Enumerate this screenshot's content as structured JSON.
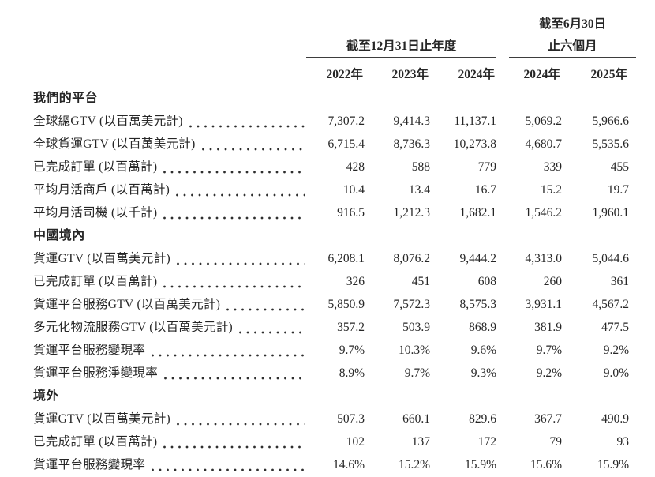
{
  "page": {
    "background": "#ffffff",
    "text_color": "#262626",
    "rule_color": "#3d3d3d"
  },
  "header": {
    "group1": {
      "title": "截至12月31日止年度",
      "years": [
        "2022年",
        "2023年",
        "2024年"
      ]
    },
    "group2": {
      "title_line1": "截至6月30日",
      "title_line2": "止六個月",
      "years": [
        "2024年",
        "2025年"
      ]
    }
  },
  "sections": [
    {
      "title": "我們的平台",
      "rows": [
        {
          "label": "全球總GTV (以百萬美元計)",
          "values": [
            "7,307.2",
            "9,414.3",
            "11,137.1",
            "5,069.2",
            "5,966.6"
          ]
        },
        {
          "label": "全球貨運GTV (以百萬美元計)",
          "values": [
            "6,715.4",
            "8,736.3",
            "10,273.8",
            "4,680.7",
            "5,535.6"
          ]
        },
        {
          "label": "已完成訂單 (以百萬計)",
          "values": [
            "428",
            "588",
            "779",
            "339",
            "455"
          ]
        },
        {
          "label": "平均月活商戶 (以百萬計)",
          "values": [
            "10.4",
            "13.4",
            "16.7",
            "15.2",
            "19.7"
          ]
        },
        {
          "label": "平均月活司機 (以千計)",
          "values": [
            "916.5",
            "1,212.3",
            "1,682.1",
            "1,546.2",
            "1,960.1"
          ]
        }
      ]
    },
    {
      "title": "中國境內",
      "rows": [
        {
          "label": "貨運GTV (以百萬美元計)",
          "values": [
            "6,208.1",
            "8,076.2",
            "9,444.2",
            "4,313.0",
            "5,044.6"
          ]
        },
        {
          "label": "已完成訂單 (以百萬計)",
          "values": [
            "326",
            "451",
            "608",
            "260",
            "361"
          ]
        },
        {
          "label": "貨運平台服務GTV (以百萬美元計)",
          "values": [
            "5,850.9",
            "7,572.3",
            "8,575.3",
            "3,931.1",
            "4,567.2"
          ]
        },
        {
          "label": "多元化物流服務GTV (以百萬美元計)",
          "values": [
            "357.2",
            "503.9",
            "868.9",
            "381.9",
            "477.5"
          ]
        },
        {
          "label": "貨運平台服務變現率",
          "values": [
            "9.7%",
            "10.3%",
            "9.6%",
            "9.7%",
            "9.2%"
          ]
        },
        {
          "label": "貨運平台服務淨變現率",
          "values": [
            "8.9%",
            "9.7%",
            "9.3%",
            "9.2%",
            "9.0%"
          ]
        }
      ]
    },
    {
      "title": "境外",
      "rows": [
        {
          "label": "貨運GTV (以百萬美元計)",
          "values": [
            "507.3",
            "660.1",
            "829.6",
            "367.7",
            "490.9"
          ]
        },
        {
          "label": "已完成訂單 (以百萬計)",
          "values": [
            "102",
            "137",
            "172",
            "79",
            "93"
          ]
        },
        {
          "label": "貨運平台服務變現率",
          "values": [
            "14.6%",
            "15.2%",
            "15.9%",
            "15.6%",
            "15.9%"
          ]
        }
      ]
    }
  ]
}
